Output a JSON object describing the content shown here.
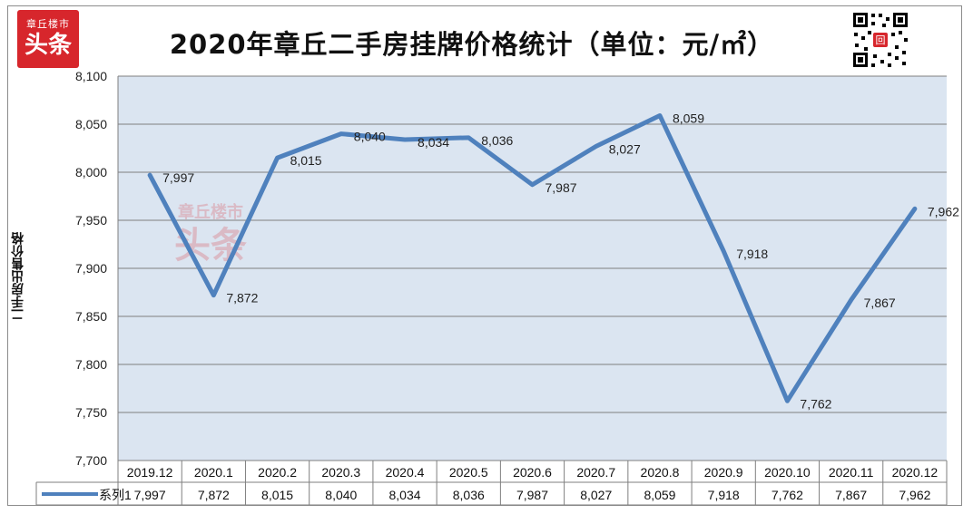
{
  "logo": {
    "top": "章丘楼市",
    "big": "头条"
  },
  "watermark": {
    "top": "章丘楼市",
    "big": "头条"
  },
  "qr_badge": "回",
  "colors": {
    "plot_bg": "#dbe5f1",
    "line": "#4f81bd",
    "grid": "#7f7f7f",
    "logo_red": "#d7262c"
  },
  "chart_data": {
    "type": "line",
    "title": "2020年章丘二手房挂牌价格统计（单位：元/㎡）",
    "xlabel": "",
    "ylabel": "二手房出售价格",
    "categories": [
      "2019.12",
      "2020.1",
      "2020.2",
      "2020.3",
      "2020.4",
      "2020.5",
      "2020.6",
      "2020.7",
      "2020.8",
      "2020.9",
      "2020.10",
      "2020.11",
      "2020.12"
    ],
    "series": [
      {
        "name": "系列1",
        "values": [
          7997,
          7872,
          8015,
          8040,
          8034,
          8036,
          7987,
          8027,
          8059,
          7918,
          7762,
          7867,
          7962
        ]
      }
    ],
    "value_labels": [
      "7,997",
      "7,872",
      "8,015",
      "8,040",
      "8,034",
      "8,036",
      "7,987",
      "8,027",
      "8,059",
      "7,918",
      "7,762",
      "7,867",
      "7,962"
    ],
    "ylim": [
      7700,
      8100
    ],
    "yticks": [
      7700,
      7750,
      7800,
      7850,
      7900,
      7950,
      8000,
      8050,
      8100
    ],
    "ytick_labels": [
      "7,700",
      "7,750",
      "7,800",
      "7,850",
      "7,900",
      "7,950",
      "8,000",
      "8,050",
      "8,100"
    ],
    "grid": true,
    "legend": "data-table"
  }
}
